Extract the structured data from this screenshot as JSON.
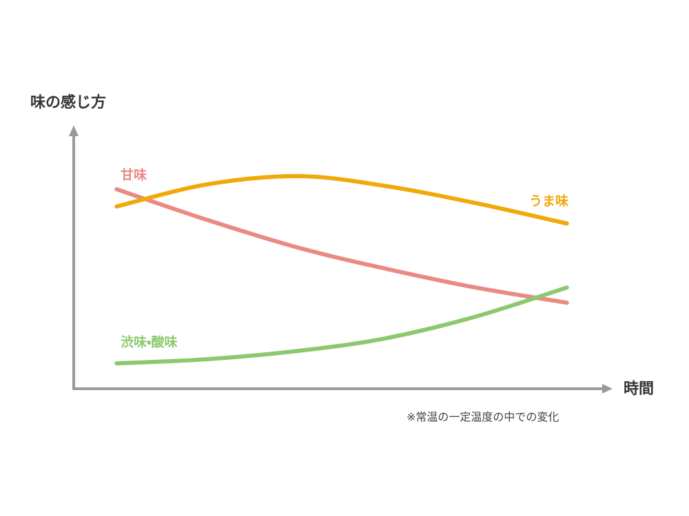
{
  "chart_data": {
    "type": "line",
    "y_label": "味の感じ方",
    "x_label": "時間",
    "note": "※常温の一定温度の中での変化",
    "x": [
      8,
      25,
      42,
      58,
      75,
      92
    ],
    "xlim": [
      0,
      100
    ],
    "ylim": [
      0,
      100
    ],
    "series": [
      {
        "name": "甘味",
        "color": "#e98a84",
        "values": [
          76.3,
          64.5,
          53.9,
          46,
          38.7,
          32.9
        ]
      },
      {
        "name": "うま味",
        "color": "#f0a90a",
        "values": [
          69.7,
          78.2,
          81.3,
          77.6,
          71,
          63.2
        ]
      },
      {
        "name": "渋味・酸味",
        "color": "#8cc96e",
        "values": [
          9.7,
          11.3,
          14.5,
          19.2,
          27.6,
          38.7
        ]
      }
    ]
  }
}
